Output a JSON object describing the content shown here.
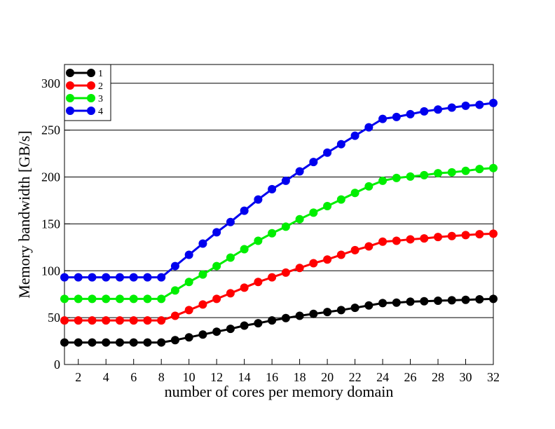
{
  "chart_data": {
    "type": "line",
    "xlabel": "number of cores per memory domain",
    "ylabel": "Memory bandwidth [GB/s]",
    "x": [
      1,
      2,
      3,
      4,
      5,
      6,
      7,
      8,
      9,
      10,
      11,
      12,
      13,
      14,
      15,
      16,
      17,
      18,
      19,
      20,
      21,
      22,
      23,
      24,
      25,
      26,
      27,
      28,
      29,
      30,
      31,
      32
    ],
    "xlim": [
      1,
      32
    ],
    "xticks": [
      2,
      4,
      6,
      8,
      10,
      12,
      14,
      16,
      18,
      20,
      22,
      24,
      26,
      28,
      30,
      32
    ],
    "ylim": [
      0,
      320
    ],
    "yticks": [
      0,
      50,
      100,
      150,
      200,
      250,
      300
    ],
    "grid": true,
    "legend_position": "upper-left",
    "series": [
      {
        "name": "1",
        "color": "#000000",
        "values": [
          23.5,
          23.5,
          23.5,
          23.5,
          23.5,
          23.5,
          23.5,
          23.5,
          26,
          29,
          32,
          35,
          38,
          41.5,
          44,
          47,
          49.5,
          52,
          54,
          56,
          58,
          60.5,
          63,
          65.5,
          66,
          67,
          67.5,
          68,
          68.5,
          69,
          69.5,
          70
        ]
      },
      {
        "name": "2",
        "color": "#ff0000",
        "values": [
          47,
          47,
          47,
          47,
          47,
          47,
          47,
          47,
          52,
          58,
          64,
          70,
          76,
          82,
          88,
          93,
          98,
          103,
          108,
          112,
          117,
          122,
          126,
          131,
          132,
          133.5,
          134.5,
          136,
          137,
          138,
          139,
          139.5
        ]
      },
      {
        "name": "3",
        "color": "#00ee00",
        "values": [
          70,
          70,
          70,
          70,
          70,
          70,
          70,
          70,
          79,
          88,
          96,
          105,
          114,
          123,
          132,
          140,
          147,
          155,
          162,
          169,
          176,
          183,
          190,
          196,
          199,
          200.5,
          202,
          204,
          205,
          206.5,
          208.5,
          209.5
        ]
      },
      {
        "name": "4",
        "color": "#0000ee",
        "values": [
          93,
          93,
          93,
          93,
          93,
          93,
          93,
          93,
          105,
          117,
          129,
          141,
          152,
          164,
          176,
          187,
          196,
          206,
          216,
          226,
          235,
          244,
          253,
          262,
          264,
          267,
          270,
          272,
          274,
          276,
          277,
          279
        ]
      }
    ]
  }
}
